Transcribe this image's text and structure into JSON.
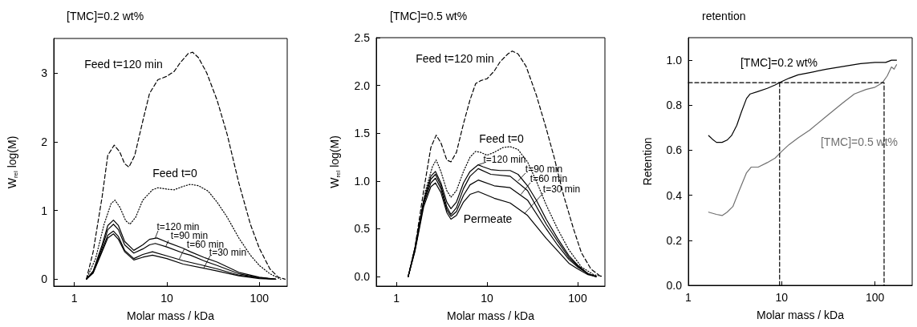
{
  "chart_data": [
    {
      "type": "line",
      "title": "[TMC]=0.2 wt%",
      "xlabel": "Molar mass / kDa",
      "ylabel": "W$_{rel}$ log(M)",
      "log": "x",
      "grid": false,
      "legend": false,
      "marker": "none",
      "xlim": [
        0.6,
        200
      ],
      "xticks": [
        1,
        10,
        100
      ],
      "ylim": [
        -0.1,
        3.5
      ],
      "yticks": [
        0,
        1,
        2,
        3
      ],
      "series": [
        {
          "name": "Feed t=120 min",
          "color": "#000000",
          "line_style": "dashed",
          "x": [
            1.35,
            1.6,
            2.0,
            2.3,
            2.7,
            3.1,
            3.5,
            3.9,
            4.5,
            5.5,
            6.5,
            8,
            10,
            12,
            14,
            17,
            19,
            22,
            27,
            35,
            45,
            60,
            80,
            100,
            130,
            160,
            190
          ],
          "values": [
            0,
            0.4,
            1.2,
            1.8,
            1.95,
            1.85,
            1.68,
            1.63,
            1.8,
            2.3,
            2.7,
            2.9,
            2.95,
            3.02,
            3.15,
            3.28,
            3.3,
            3.22,
            3.0,
            2.6,
            2.1,
            1.4,
            0.8,
            0.45,
            0.15,
            0.03,
            0
          ]
        },
        {
          "name": "Feed t=0",
          "color": "#000000",
          "line_style": "dotted",
          "x": [
            1.35,
            1.7,
            2.1,
            2.5,
            2.75,
            3.1,
            3.6,
            4,
            4.6,
            5.5,
            7,
            8,
            10,
            12,
            15,
            18,
            22,
            28,
            35,
            45,
            60,
            80,
            100,
            130,
            170
          ],
          "values": [
            0,
            0.3,
            0.8,
            1.1,
            1.15,
            1.05,
            0.85,
            0.8,
            0.9,
            1.15,
            1.3,
            1.33,
            1.31,
            1.3,
            1.35,
            1.38,
            1.36,
            1.28,
            1.12,
            0.9,
            0.6,
            0.35,
            0.2,
            0.08,
            0
          ]
        },
        {
          "color": "#000000",
          "line_style": "solid",
          "x": [
            1.35,
            1.6,
            2.0,
            2.3,
            2.65,
            3.0,
            3.5,
            4.4,
            5.5,
            6.5,
            7.8,
            10,
            15,
            18,
            25,
            35,
            60,
            100,
            150
          ],
          "values": [
            0,
            0.12,
            0.5,
            0.78,
            0.86,
            0.78,
            0.55,
            0.42,
            0.5,
            0.58,
            0.6,
            0.54,
            0.45,
            0.4,
            0.32,
            0.25,
            0.1,
            0.03,
            0
          ]
        },
        {
          "color": "#000000",
          "line_style": "solid",
          "x": [
            1.35,
            1.6,
            2.0,
            2.3,
            2.65,
            3.0,
            3.5,
            4.4,
            5.5,
            6.5,
            7.5,
            10,
            15,
            18,
            25,
            35,
            60,
            100,
            150
          ],
          "values": [
            0,
            0.11,
            0.46,
            0.72,
            0.8,
            0.72,
            0.5,
            0.38,
            0.44,
            0.5,
            0.52,
            0.47,
            0.38,
            0.35,
            0.27,
            0.2,
            0.08,
            0.02,
            0
          ]
        },
        {
          "color": "#000000",
          "line_style": "solid",
          "x": [
            1.35,
            1.6,
            2.0,
            2.3,
            2.65,
            3.0,
            3.5,
            4.4,
            5.5,
            7,
            10,
            15,
            25,
            35,
            60,
            100,
            150
          ],
          "values": [
            0,
            0.1,
            0.42,
            0.64,
            0.7,
            0.62,
            0.42,
            0.3,
            0.36,
            0.4,
            0.34,
            0.27,
            0.2,
            0.15,
            0.06,
            0.02,
            0
          ]
        },
        {
          "color": "#000000",
          "line_style": "solid",
          "x": [
            1.35,
            1.6,
            2.0,
            2.3,
            2.65,
            3.0,
            3.5,
            4.4,
            5.5,
            7,
            10,
            15,
            25,
            35,
            60,
            100,
            150
          ],
          "values": [
            0,
            0.09,
            0.4,
            0.6,
            0.66,
            0.58,
            0.4,
            0.28,
            0.32,
            0.35,
            0.3,
            0.22,
            0.16,
            0.12,
            0.05,
            0.01,
            0
          ]
        }
      ],
      "annotations": [
        {
          "text": "t=120 min",
          "x": 7.5,
          "y": 0.6
        },
        {
          "text": "t=90 min",
          "x": 9.7,
          "y": 0.47
        },
        {
          "text": "t=60 min",
          "x": 13.6,
          "y": 0.29
        },
        {
          "text": "t=30 min",
          "x": 25,
          "y": 0.16
        }
      ]
    },
    {
      "type": "line",
      "title": "[TMC]=0.5 wt%",
      "xlabel": "Molar mass / kDa",
      "ylabel": "W$_{rel}$ log(M)",
      "log": "x",
      "grid": false,
      "legend": false,
      "marker": "none",
      "xlim": [
        0.6,
        200
      ],
      "xticks": [
        1,
        10,
        100
      ],
      "ylim": [
        -0.1,
        2.5
      ],
      "yticks": [
        {
          "value": 0,
          "label": "0.0"
        },
        {
          "value": 0.5,
          "label": "0.5"
        },
        {
          "value": 1,
          "label": "1.0"
        },
        {
          "value": 1.5,
          "label": "1.5"
        },
        {
          "value": 2,
          "label": "2.0"
        },
        {
          "value": 2.5,
          "label": "2.5"
        }
      ],
      "series": [
        {
          "name": "Feed t=120 min",
          "color": "#000000",
          "line_style": "dashed",
          "x": [
            1.35,
            1.6,
            2,
            2.4,
            2.75,
            3.1,
            3.6,
            4,
            4.6,
            5.5,
            6.5,
            7.5,
            8.5,
            10,
            12,
            14,
            17,
            19,
            22,
            27,
            35,
            45,
            55,
            70,
            90,
            110,
            140,
            180
          ],
          "values": [
            0,
            0.3,
            0.9,
            1.35,
            1.48,
            1.4,
            1.22,
            1.2,
            1.3,
            1.6,
            1.85,
            2.02,
            2.05,
            2.07,
            2.15,
            2.25,
            2.33,
            2.36,
            2.33,
            2.2,
            1.9,
            1.55,
            1.25,
            0.85,
            0.5,
            0.25,
            0.08,
            0
          ]
        },
        {
          "name": "Feed t=0",
          "color": "#000000",
          "line_style": "dotted",
          "x": [
            1.35,
            1.7,
            2.1,
            2.5,
            2.75,
            3.1,
            3.6,
            4,
            4.6,
            5.5,
            6.5,
            7.5,
            8.5,
            10,
            12,
            15,
            18,
            22,
            28,
            35,
            45,
            60,
            80,
            110,
            150,
            190
          ],
          "values": [
            0,
            0.4,
            0.9,
            1.15,
            1.22,
            1.1,
            0.9,
            0.83,
            0.9,
            1.1,
            1.25,
            1.31,
            1.3,
            1.27,
            1.3,
            1.35,
            1.36,
            1.33,
            1.2,
            1.0,
            0.75,
            0.5,
            0.28,
            0.1,
            0.02,
            0
          ]
        },
        {
          "color": "#000000",
          "line_style": "solid",
          "x": [
            1.35,
            1.6,
            2,
            2.4,
            2.7,
            3.1,
            3.6,
            4,
            4.6,
            5.5,
            6.5,
            8,
            9,
            11,
            14,
            18,
            22,
            28,
            35,
            45,
            60,
            80,
            100,
            130,
            160
          ],
          "values": [
            0,
            0.3,
            0.8,
            1.05,
            1.1,
            0.98,
            0.78,
            0.71,
            0.78,
            0.98,
            1.1,
            1.17,
            1.15,
            1.12,
            1.11,
            1.11,
            1.07,
            0.95,
            0.8,
            0.6,
            0.4,
            0.22,
            0.12,
            0.03,
            0
          ]
        },
        {
          "color": "#000000",
          "line_style": "solid",
          "x": [
            1.35,
            1.6,
            2,
            2.4,
            2.7,
            3.1,
            3.6,
            4,
            4.6,
            5.5,
            6.5,
            8,
            11,
            18,
            28,
            45,
            60,
            80,
            100,
            130,
            160
          ],
          "values": [
            0,
            0.28,
            0.78,
            1.02,
            1.07,
            0.95,
            0.73,
            0.65,
            0.72,
            0.92,
            1.05,
            1.13,
            1.07,
            1.05,
            0.9,
            0.55,
            0.37,
            0.2,
            0.11,
            0.03,
            0
          ]
        },
        {
          "color": "#000000",
          "line_style": "solid",
          "x": [
            1.35,
            1.6,
            2,
            2.4,
            2.7,
            3.1,
            3.6,
            4,
            4.6,
            5.5,
            6.5,
            8,
            12,
            18,
            28,
            45,
            60,
            80,
            100,
            130,
            160
          ],
          "values": [
            0,
            0.27,
            0.76,
            0.98,
            1.03,
            0.92,
            0.7,
            0.63,
            0.68,
            0.85,
            0.96,
            1.01,
            0.95,
            0.93,
            0.8,
            0.5,
            0.33,
            0.18,
            0.1,
            0.03,
            0
          ]
        },
        {
          "color": "#000000",
          "line_style": "solid",
          "x": [
            1.35,
            1.6,
            2,
            2.4,
            2.7,
            3.1,
            3.6,
            4,
            4.6,
            5.5,
            6.5,
            8,
            12,
            18,
            28,
            45,
            60,
            80,
            100,
            130,
            160
          ],
          "values": [
            0,
            0.26,
            0.73,
            0.94,
            0.98,
            0.88,
            0.67,
            0.6,
            0.64,
            0.78,
            0.86,
            0.89,
            0.82,
            0.77,
            0.64,
            0.4,
            0.27,
            0.14,
            0.08,
            0.02,
            0
          ]
        }
      ],
      "annotations": [
        {
          "text": "t=120 min",
          "x": 8,
          "y": 1.17
        },
        {
          "text": "t=90 min",
          "x": 22,
          "y": 1.0
        },
        {
          "text": "t=60 min",
          "x": 23.7,
          "y": 0.86
        },
        {
          "text": "t=30 min",
          "x": 26,
          "y": 0.66
        },
        "Permeate"
      ]
    },
    {
      "type": "line",
      "title": "retention",
      "xlabel": "Molar mass / kDa",
      "ylabel": "Retention",
      "log": "x",
      "grid": false,
      "legend": false,
      "marker": "none",
      "xlim": [
        1,
        250
      ],
      "xticks": [
        1,
        10,
        100
      ],
      "ylim": [
        0,
        1.1
      ],
      "yticks": [
        {
          "value": 0,
          "label": "0.0"
        },
        {
          "value": 0.2,
          "label": "0.2"
        },
        {
          "value": 0.4,
          "label": "0.4"
        },
        {
          "value": 0.6,
          "label": "0.6"
        },
        {
          "value": 0.8,
          "label": "0.8"
        },
        {
          "value": 1,
          "label": "1.0"
        }
      ],
      "series": [
        {
          "name": "[TMC]=0.2 wt%",
          "color": "#000000",
          "line_style": "solid",
          "x": [
            1.65,
            1.8,
            2,
            2.3,
            2.6,
            2.9,
            3.3,
            3.7,
            4.2,
            4.6,
            5.5,
            7,
            8.5,
            10,
            12,
            15,
            20,
            30,
            50,
            70,
            100,
            130,
            150,
            170
          ],
          "values": [
            0.665,
            0.65,
            0.635,
            0.635,
            0.645,
            0.665,
            0.71,
            0.77,
            0.83,
            0.85,
            0.86,
            0.875,
            0.89,
            0.905,
            0.92,
            0.935,
            0.945,
            0.96,
            0.975,
            0.985,
            0.99,
            0.99,
            1.0,
            1.0
          ]
        },
        {
          "name": "[TMC]=0.5 wt%",
          "color": "#707070",
          "line_style": "solid",
          "x": [
            1.65,
            2,
            2.3,
            2.6,
            3,
            3.5,
            4.2,
            4.7,
            5.6,
            7,
            8.5,
            10,
            12,
            15,
            20,
            30,
            45,
            60,
            80,
            100,
            120,
            135,
            150,
            160,
            170
          ],
          "values": [
            0.325,
            0.315,
            0.31,
            0.325,
            0.35,
            0.42,
            0.5,
            0.525,
            0.525,
            0.545,
            0.565,
            0.595,
            0.625,
            0.655,
            0.69,
            0.75,
            0.81,
            0.85,
            0.87,
            0.88,
            0.9,
            0.93,
            0.97,
            0.96,
            0.98
          ]
        },
        {
          "color": "#000000",
          "line_style": "dashed",
          "x": [
            1,
            125,
            125
          ],
          "values": [
            0.9,
            0.9,
            0
          ]
        },
        {
          "color": "#000000",
          "line_style": "dashed",
          "x": [
            9.5,
            9.5
          ],
          "values": [
            0.9,
            0
          ]
        }
      ]
    }
  ]
}
